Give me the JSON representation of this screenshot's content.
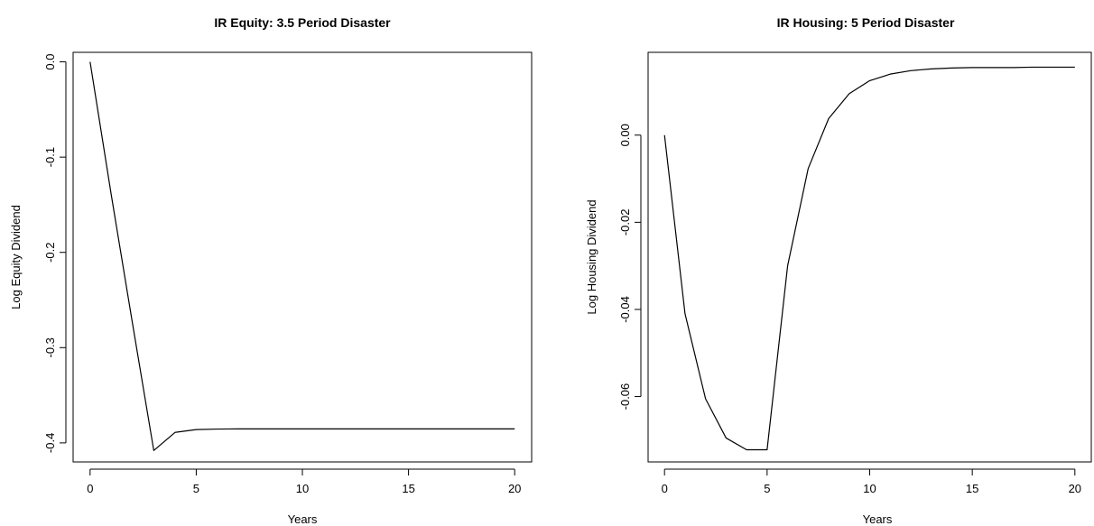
{
  "chart_data": [
    {
      "type": "line",
      "title": "IR Equity: 3.5 Period Disaster",
      "xlabel": "Years",
      "ylabel": "Log Equity Dividend",
      "xlim": [
        -0.8,
        20.8
      ],
      "ylim": [
        -0.42,
        0.01
      ],
      "xticks": [
        0,
        5,
        10,
        15,
        20
      ],
      "xtick_labels": [
        "0",
        "5",
        "10",
        "15",
        "20"
      ],
      "yticks": [
        0.0,
        -0.1,
        -0.2,
        -0.3,
        -0.4
      ],
      "ytick_labels": [
        "0.0",
        "-0.1",
        "-0.2",
        "-0.3",
        "-0.4"
      ],
      "grid": false,
      "series": [
        {
          "x": [
            0,
            1,
            2,
            3,
            4,
            5,
            6,
            7,
            8,
            9,
            10,
            11,
            12,
            13,
            14,
            15,
            16,
            17,
            18,
            19,
            20
          ],
          "values": [
            0.0,
            -0.14,
            -0.275,
            -0.408,
            -0.389,
            -0.386,
            -0.3855,
            -0.3853,
            -0.3853,
            -0.3853,
            -0.3853,
            -0.3853,
            -0.3853,
            -0.3853,
            -0.3853,
            -0.3853,
            -0.3853,
            -0.3853,
            -0.3853,
            -0.3853,
            -0.3853
          ]
        }
      ]
    },
    {
      "type": "line",
      "title": "IR Housing: 5 Period Disaster",
      "xlabel": "Years",
      "ylabel": "Log Housing Dividend",
      "xlim": [
        -0.8,
        20.8
      ],
      "ylim": [
        -0.075,
        0.019
      ],
      "xticks": [
        0,
        5,
        10,
        15,
        20
      ],
      "xtick_labels": [
        "0",
        "5",
        "10",
        "15",
        "20"
      ],
      "yticks": [
        0.0,
        -0.02,
        -0.04,
        -0.06
      ],
      "ytick_labels": [
        "0.00",
        "-0.02",
        "-0.04",
        "-0.06"
      ],
      "grid": false,
      "series": [
        {
          "x": [
            0,
            1,
            2,
            3,
            4,
            5,
            6,
            7,
            8,
            9,
            10,
            11,
            12,
            13,
            14,
            15,
            16,
            17,
            18,
            19,
            20
          ],
          "values": [
            0.0,
            -0.041,
            -0.0605,
            -0.0695,
            -0.0722,
            -0.0722,
            -0.03,
            -0.0077,
            0.0038,
            0.0095,
            0.0125,
            0.014,
            0.0148,
            0.0152,
            0.0154,
            0.0155,
            0.0155,
            0.0155,
            0.0156,
            0.0156,
            0.0156
          ]
        }
      ]
    }
  ]
}
